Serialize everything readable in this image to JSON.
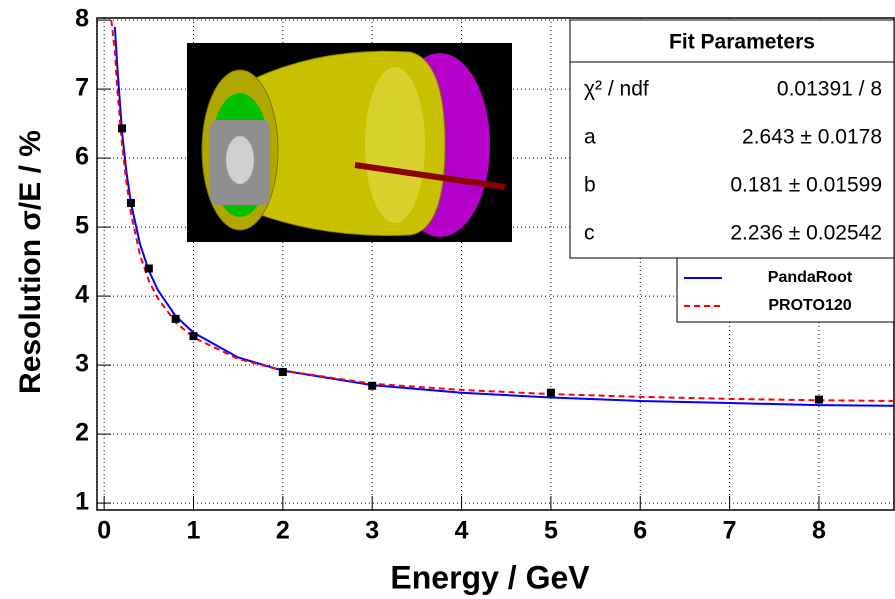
{
  "chart_data": {
    "type": "line",
    "x_label": "Energy / GeV",
    "y_label": "Resolution σ/E / %",
    "xlim": [
      -0.08,
      8.84
    ],
    "ylim": [
      0.9,
      8.03
    ],
    "xticks": [
      0,
      1,
      2,
      3,
      4,
      5,
      6,
      7,
      8
    ],
    "yticks": [
      1,
      2,
      3,
      4,
      5,
      6,
      7,
      8
    ],
    "grid": true,
    "legend": "upper right",
    "series": [
      {
        "name": "PandaRoot",
        "color": "#0000ff",
        "dash": false,
        "x": [
          0.12,
          0.15,
          0.2,
          0.25,
          0.3,
          0.4,
          0.5,
          0.6,
          0.8,
          1,
          1.5,
          2,
          3,
          4,
          5,
          6,
          7,
          8,
          8.84
        ],
        "values": [
          7.9,
          7.28,
          6.38,
          5.79,
          5.35,
          4.76,
          4.37,
          4.09,
          3.71,
          3.47,
          3.11,
          2.92,
          2.71,
          2.6,
          2.53,
          2.48,
          2.45,
          2.42,
          2.41
        ]
      },
      {
        "name": "PROTO120",
        "color": "#ff0000",
        "dash": true,
        "x": [
          0.08,
          0.12,
          0.15,
          0.2,
          0.25,
          0.3,
          0.4,
          0.5,
          0.6,
          0.8,
          1,
          1.5,
          2,
          3,
          4,
          5,
          6,
          7,
          8,
          8.84
        ],
        "values": [
          8.0,
          7.55,
          6.95,
          6.2,
          5.65,
          5.2,
          4.6,
          4.22,
          3.97,
          3.62,
          3.4,
          3.09,
          2.92,
          2.73,
          2.64,
          2.58,
          2.54,
          2.51,
          2.49,
          2.48
        ]
      }
    ],
    "points": {
      "color": "#000000",
      "x": [
        0.2,
        0.3,
        0.5,
        0.8,
        1,
        2,
        3,
        5,
        8
      ],
      "values": [
        6.43,
        5.35,
        4.4,
        3.67,
        3.42,
        2.9,
        2.7,
        2.6,
        2.5
      ]
    },
    "stats": {
      "title": "Fit Parameters",
      "rows": [
        [
          "χ² / ndf",
          "0.01391 / 8"
        ],
        [
          "a",
          "2.643 ± 0.0178"
        ],
        [
          "b",
          "0.181 ± 0.01599"
        ],
        [
          "c",
          "2.236 ± 0.02542"
        ]
      ]
    }
  }
}
